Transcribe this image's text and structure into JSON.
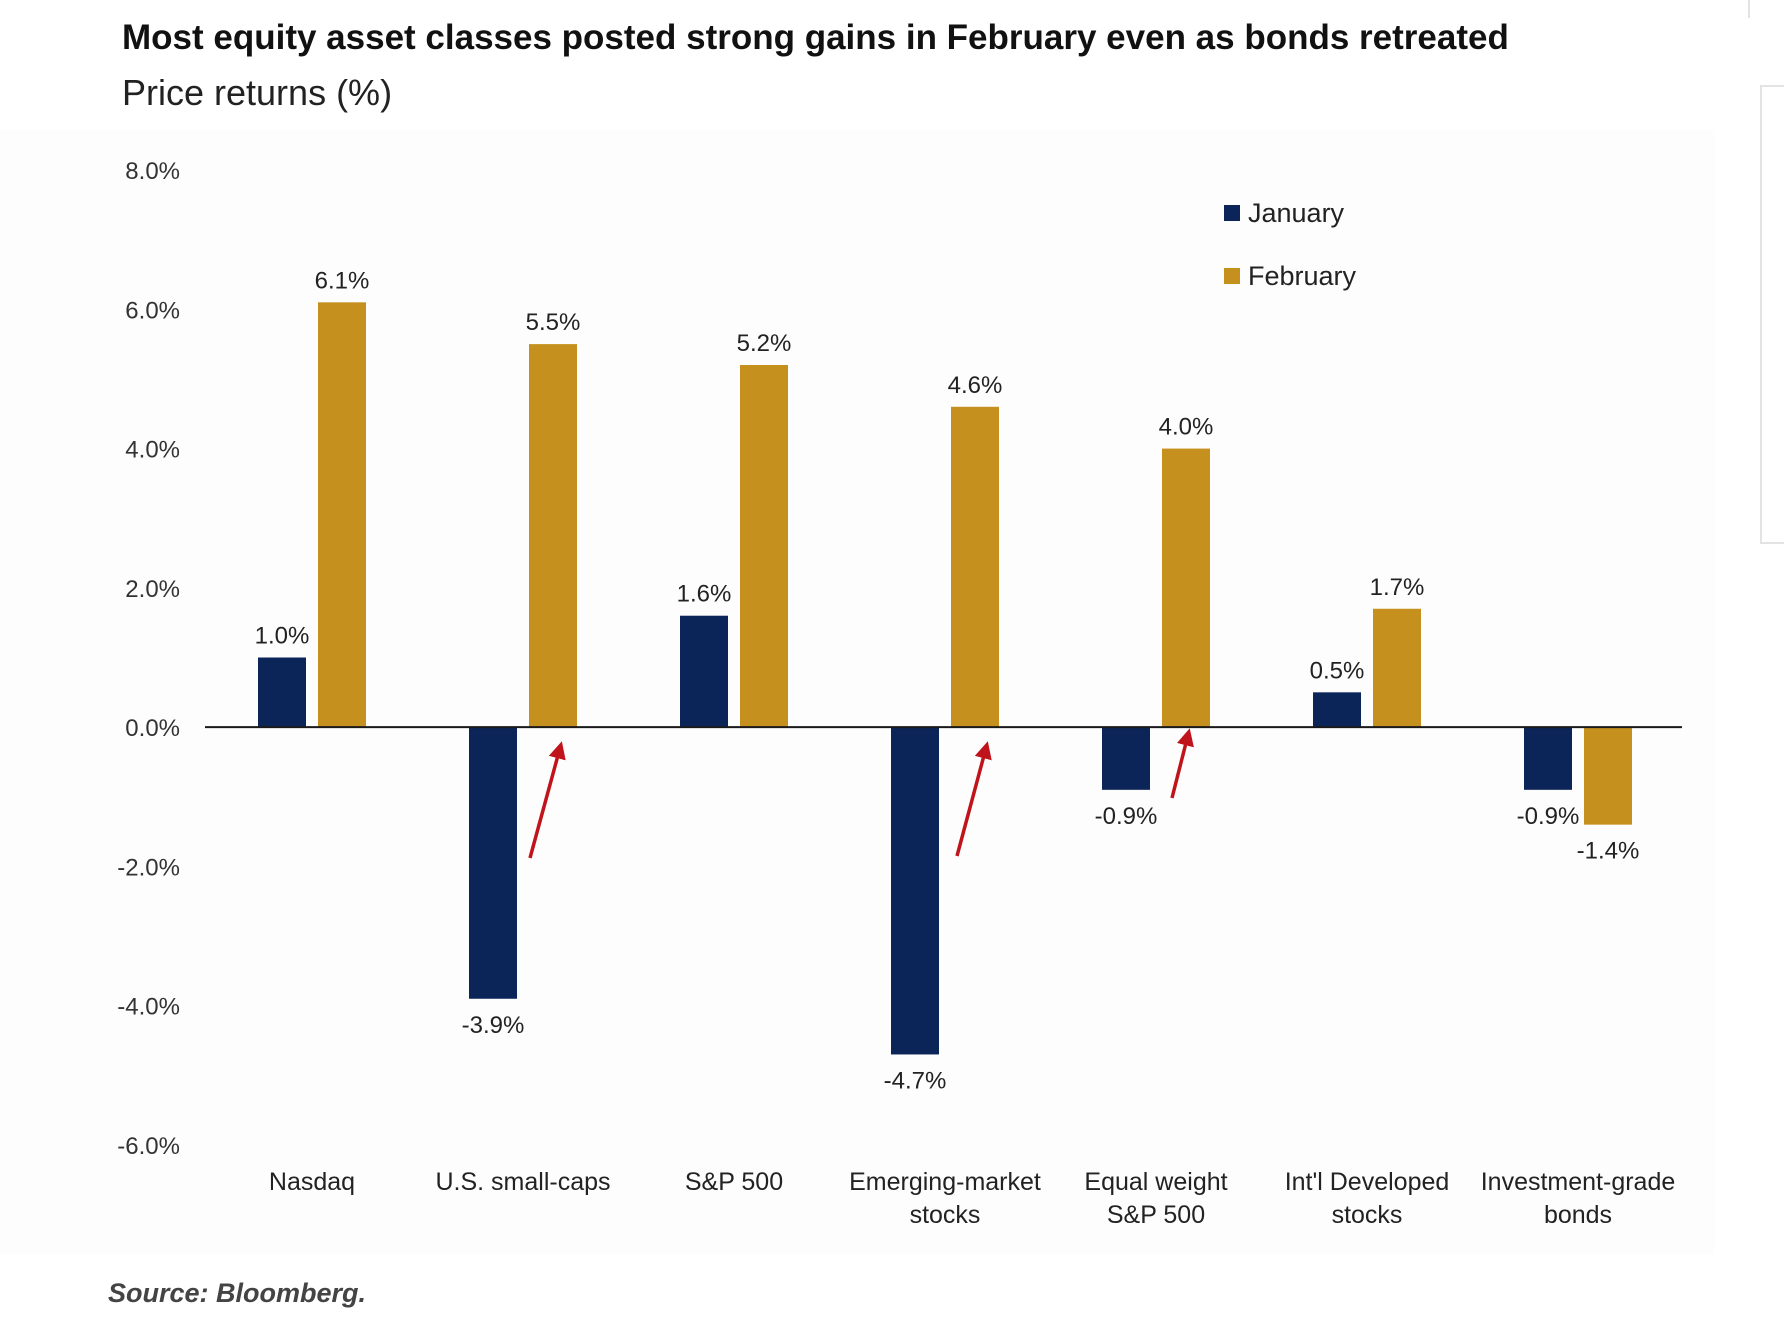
{
  "chart_data": {
    "type": "bar",
    "title": "Most equity asset classes posted strong gains in February even as bonds retreated",
    "subtitle": "Price returns (%)",
    "categories": [
      [
        "Nasdaq"
      ],
      [
        "U.S. small-caps"
      ],
      [
        "S&P 500"
      ],
      [
        "Emerging-market",
        "stocks"
      ],
      [
        "Equal weight",
        "S&P 500"
      ],
      [
        "Int'l Developed",
        "stocks"
      ],
      [
        "Investment-grade",
        "bonds"
      ]
    ],
    "series": [
      {
        "name": "January",
        "color": "#0b2558",
        "values": [
          1.0,
          -3.9,
          1.6,
          -4.7,
          -0.9,
          0.5,
          -0.9
        ],
        "labels": [
          "1.0%",
          "-3.9%",
          "1.6%",
          "-4.7%",
          "-0.9%",
          "0.5%",
          "-0.9%"
        ]
      },
      {
        "name": "February",
        "color": "#c6901e",
        "values": [
          6.1,
          5.5,
          5.2,
          4.6,
          4.0,
          1.7,
          -1.4
        ],
        "labels": [
          "6.1%",
          "5.5%",
          "5.2%",
          "4.6%",
          "4.0%",
          "1.7%",
          "-1.4%"
        ]
      }
    ],
    "ylim": [
      -6,
      8
    ],
    "yticks": [
      8,
      6,
      4,
      2,
      0,
      -2,
      -4,
      -6
    ],
    "ytick_labels": [
      "8.0%",
      "6.0%",
      "4.0%",
      "2.0%",
      "0.0%",
      "-2.0%",
      "-4.0%",
      "-6.0%"
    ],
    "legend_position": "top-right",
    "grid": false,
    "annotations": {
      "arrow_color": "#c0141c",
      "arrows_at_categories": [
        1,
        3,
        4
      ]
    }
  },
  "source": "Source: Bloomberg."
}
